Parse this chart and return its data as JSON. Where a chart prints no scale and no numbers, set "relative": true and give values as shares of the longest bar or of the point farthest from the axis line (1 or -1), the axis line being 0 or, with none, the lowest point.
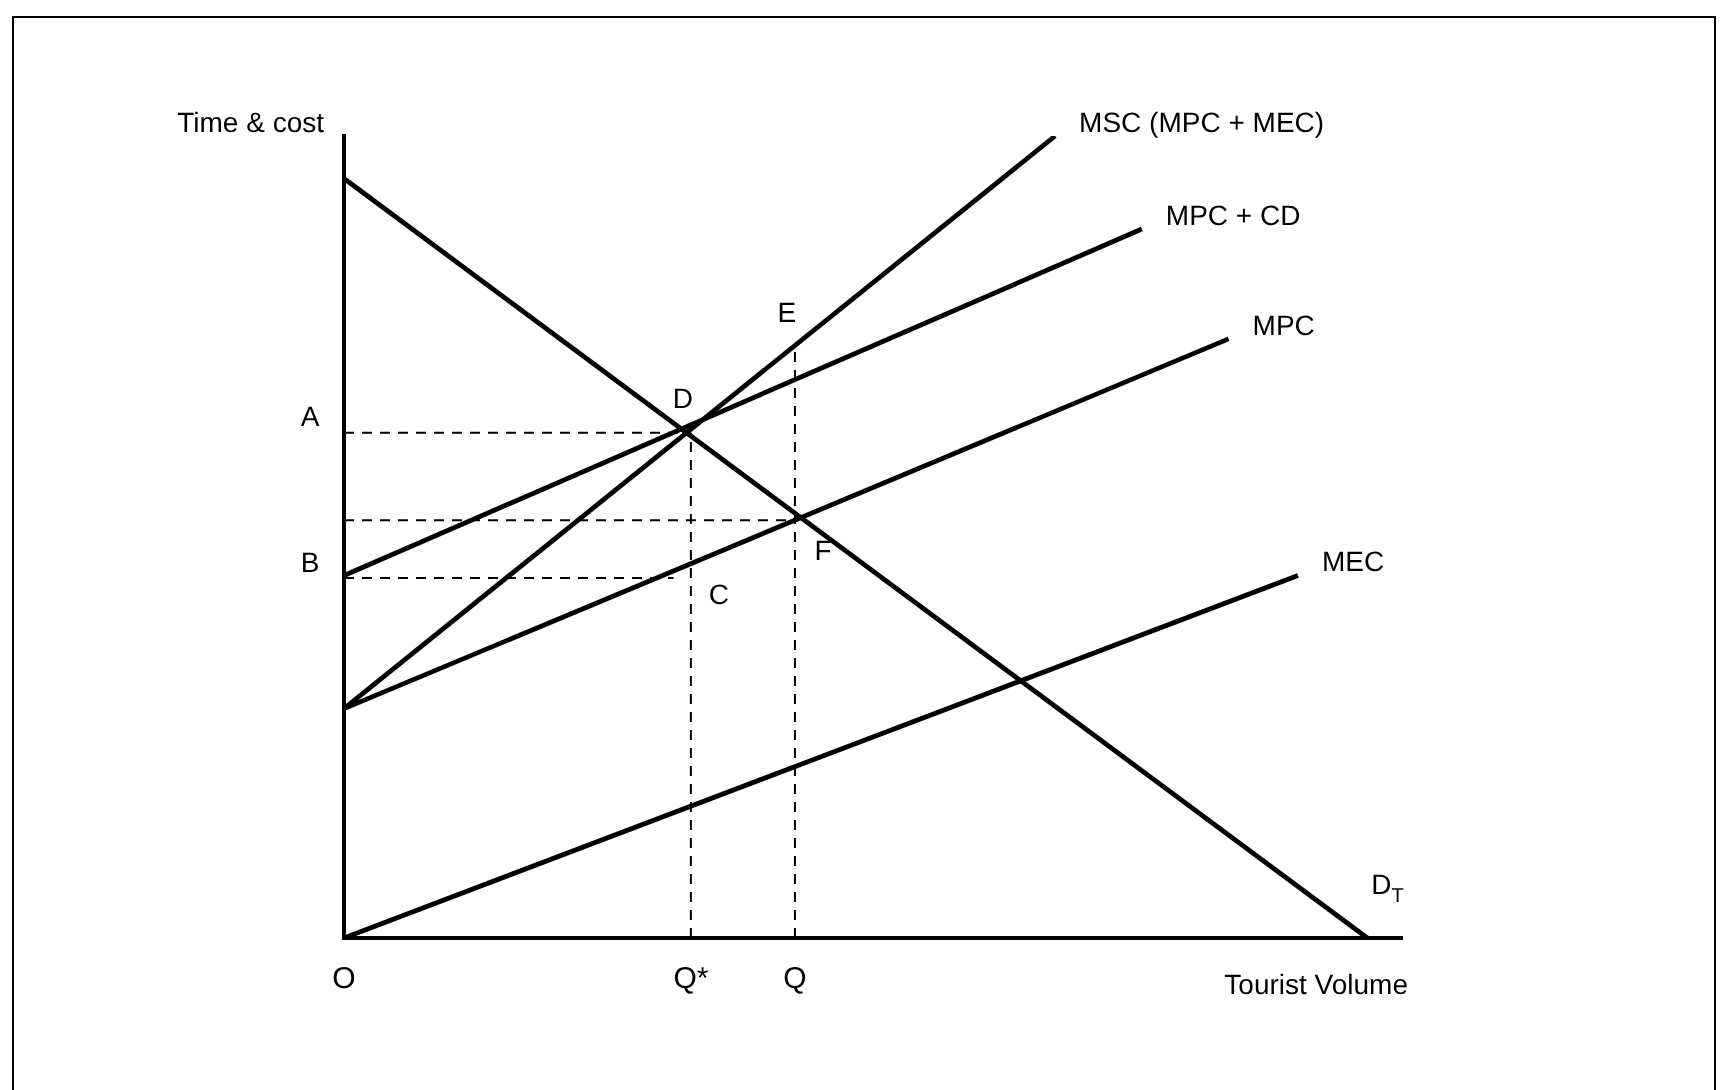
{
  "chart_data": {
    "type": "line",
    "relative": true,
    "xlabel": "Tourist Volume",
    "ylabel": "Time & cost",
    "legend": false,
    "marker": "none",
    "grid": false,
    "categories": [
      "O",
      null,
      null,
      null,
      null,
      null,
      null,
      null,
      null,
      null,
      null,
      null,
      null,
      null,
      null,
      null,
      null,
      null,
      null,
      null,
      "Q*",
      null,
      null,
      null,
      null,
      null,
      "Q",
      null,
      null,
      null,
      null,
      null,
      null,
      null,
      null,
      null,
      null,
      null,
      null,
      null,
      null,
      null,
      null,
      null,
      null,
      null,
      null,
      null,
      null,
      null,
      null,
      null,
      null,
      null,
      null,
      null,
      null,
      null,
      null,
      null,
      null,
      null
    ],
    "series": [
      {
        "name": "MSC (MPC + MEC)",
        "color": "#000000",
        "values": [
          0.286,
          null,
          null,
          null,
          null,
          null,
          null,
          null,
          null,
          null,
          null,
          null,
          null,
          null,
          null,
          null,
          null,
          null,
          null,
          null,
          null,
          null,
          null,
          null,
          null,
          null,
          null,
          null,
          null,
          null,
          null,
          null,
          null,
          null,
          null,
          null,
          null,
          null,
          null,
          null,
          null,
          1,
          null,
          null,
          null,
          null,
          null,
          null,
          null,
          null,
          null,
          null,
          null,
          null,
          null,
          null,
          null,
          null,
          null,
          null,
          null,
          null
        ]
      },
      {
        "name": "MPC + CD",
        "color": "#000000",
        "values": [
          0.452,
          null,
          null,
          null,
          null,
          null,
          null,
          null,
          null,
          null,
          null,
          null,
          null,
          null,
          null,
          null,
          null,
          null,
          null,
          null,
          null,
          null,
          null,
          null,
          null,
          null,
          null,
          null,
          null,
          null,
          null,
          null,
          null,
          null,
          null,
          null,
          null,
          null,
          null,
          null,
          null,
          null,
          null,
          null,
          null,
          null,
          0.884,
          null,
          null,
          null,
          null,
          null,
          null,
          null,
          null,
          null,
          null,
          null,
          null,
          null,
          null,
          null
        ]
      },
      {
        "name": "MPC",
        "color": "#000000",
        "values": [
          0.286,
          null,
          null,
          null,
          null,
          null,
          null,
          null,
          null,
          null,
          null,
          null,
          null,
          null,
          null,
          null,
          null,
          null,
          null,
          null,
          null,
          null,
          null,
          null,
          null,
          null,
          null,
          null,
          null,
          null,
          null,
          null,
          null,
          null,
          null,
          null,
          null,
          null,
          null,
          null,
          null,
          null,
          null,
          null,
          null,
          null,
          null,
          null,
          null,
          null,
          null,
          0.747,
          null,
          null,
          null,
          null,
          null,
          null,
          null,
          null,
          null,
          null
        ]
      },
      {
        "name": "MEC",
        "color": "#000000",
        "values": [
          0,
          null,
          null,
          null,
          null,
          null,
          null,
          null,
          null,
          null,
          null,
          null,
          null,
          null,
          null,
          null,
          null,
          null,
          null,
          null,
          null,
          null,
          null,
          null,
          null,
          null,
          null,
          null,
          null,
          null,
          null,
          null,
          null,
          null,
          null,
          null,
          null,
          null,
          null,
          null,
          null,
          null,
          null,
          null,
          null,
          null,
          null,
          null,
          null,
          null,
          null,
          null,
          null,
          null,
          null,
          0.452,
          null,
          null,
          null,
          null,
          null,
          null
        ]
      },
      {
        "name": "D$_{T}$",
        "color": "#000000",
        "values": [
          0.947,
          null,
          null,
          null,
          null,
          null,
          null,
          null,
          null,
          null,
          null,
          null,
          null,
          null,
          null,
          null,
          null,
          null,
          null,
          null,
          null,
          null,
          null,
          null,
          null,
          null,
          null,
          null,
          null,
          null,
          null,
          null,
          null,
          null,
          null,
          null,
          null,
          null,
          null,
          null,
          null,
          null,
          null,
          null,
          null,
          null,
          null,
          null,
          null,
          null,
          null,
          null,
          null,
          null,
          null,
          null,
          null,
          null,
          null,
          0,
          null,
          null
        ]
      },
      {
        "name": "A",
        "color": "#000000",
        "line_style": "dashed",
        "values": [
          0.63,
          null,
          null,
          null,
          null,
          null,
          null,
          null,
          null,
          null,
          null,
          null,
          null,
          null,
          null,
          null,
          null,
          null,
          null,
          null,
          0.63,
          null,
          null,
          null,
          null,
          null,
          null,
          null,
          null,
          null,
          null,
          null,
          null,
          null,
          null,
          null,
          null,
          null,
          null,
          null,
          null,
          null,
          null,
          null,
          null,
          null,
          null,
          null,
          null,
          null,
          null,
          null,
          null,
          null,
          null,
          null,
          null,
          null,
          null,
          null,
          null,
          null
        ]
      },
      {
        "color": "#000000",
        "line_style": "dashed",
        "values": [
          0.521,
          null,
          null,
          null,
          null,
          null,
          null,
          null,
          null,
          null,
          null,
          null,
          null,
          null,
          null,
          null,
          null,
          null,
          null,
          null,
          null,
          null,
          null,
          null,
          null,
          null,
          0.521,
          null,
          null,
          null,
          null,
          null,
          null,
          null,
          null,
          null,
          null,
          null,
          null,
          null,
          null,
          null,
          null,
          null,
          null,
          null,
          null,
          null,
          null,
          null,
          null,
          null,
          null,
          null,
          null,
          null,
          null,
          null,
          null,
          null,
          null,
          null
        ]
      },
      {
        "name": "B",
        "color": "#000000",
        "line_style": "dashed",
        "values": [
          0.449,
          null,
          null,
          null,
          null,
          null,
          null,
          null,
          null,
          null,
          null,
          null,
          null,
          null,
          null,
          null,
          null,
          null,
          null,
          0.449,
          null,
          null,
          null,
          null,
          null,
          null,
          null,
          null,
          null,
          null,
          null,
          null,
          null,
          null,
          null,
          null,
          null,
          null,
          null,
          null,
          null,
          null,
          null,
          null,
          null,
          null,
          null,
          null,
          null,
          null,
          null,
          null,
          null,
          null,
          null,
          null,
          null,
          null,
          null,
          null,
          null,
          null
        ]
      },
      {
        "color": "#000000",
        "line_style": "dashed",
        "x": [
          "Q*",
          "Q*"
        ],
        "values": [
          0,
          0.63
        ]
      },
      {
        "color": "#000000",
        "line_style": "dashed",
        "x": [
          "Q",
          "Q"
        ],
        "values": [
          0,
          0.738
        ]
      }
    ],
    "annotations": [
      {
        "text": "D",
        "x": "Q*",
        "y": 0.63
      },
      {
        "text": "C",
        "x": "Q*",
        "y": 0.466
      },
      {
        "text": "E",
        "x": "Q",
        "y": 0.738
      },
      {
        "text": "F",
        "x": "Q",
        "y": 0.521
      }
    ]
  }
}
